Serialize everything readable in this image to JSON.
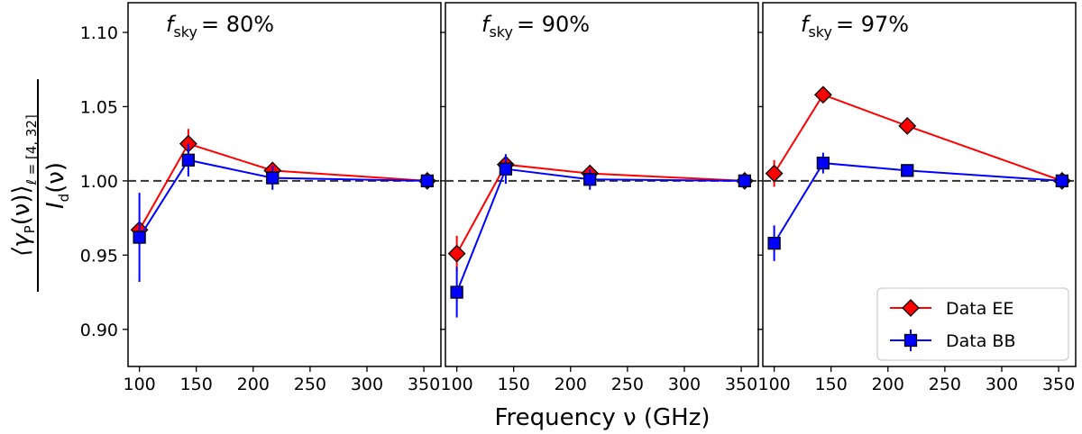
{
  "figure": {
    "xlabel": "Frequency ν (GHz)",
    "ylabel_main": "⟨γ",
    "ylabel_sub_P": "P",
    "ylabel_nu": "(ν)⟩",
    "ylabel_ell": "ℓ = [4, 32]",
    "ylabel_den": "I",
    "ylabel_den_sub": "d",
    "ylabel_den_nu": "(ν)"
  },
  "chart_data": [
    {
      "type": "line",
      "title_symbol": "f",
      "title_sub": "sky",
      "title_value": "= 80%",
      "x": [
        100,
        143,
        217,
        353
      ],
      "xlim": [
        90,
        365
      ],
      "ylim": [
        0.875,
        1.12
      ],
      "xticks": [
        "100",
        "150",
        "200",
        "250",
        "300",
        "350"
      ],
      "yticks": [
        "0.90",
        "0.95",
        "1.00",
        "1.05",
        "1.10"
      ],
      "reference_line": 1.0,
      "series": [
        {
          "name": "Data EE",
          "color": "#ff0000",
          "marker": "diamond",
          "values": [
            0.967,
            1.025,
            1.007,
            1.0
          ],
          "errors": [
            0.0,
            0.01,
            0.0,
            0.0
          ]
        },
        {
          "name": "Data BB",
          "color": "#0000ff",
          "marker": "square",
          "values": [
            0.962,
            1.014,
            1.002,
            1.0
          ],
          "errors": [
            0.03,
            0.011,
            0.008,
            0.0
          ]
        }
      ]
    },
    {
      "type": "line",
      "title_symbol": "f",
      "title_sub": "sky",
      "title_value": "= 90%",
      "x": [
        100,
        143,
        217,
        353
      ],
      "xlim": [
        90,
        365
      ],
      "ylim": [
        0.875,
        1.12
      ],
      "xticks": [
        "100",
        "150",
        "200",
        "250",
        "300",
        "350"
      ],
      "yticks": [],
      "reference_line": 1.0,
      "series": [
        {
          "name": "Data EE",
          "color": "#ff0000",
          "marker": "diamond",
          "values": [
            0.951,
            1.011,
            1.005,
            1.0
          ],
          "errors": [
            0.012,
            0.0,
            0.0,
            0.0
          ]
        },
        {
          "name": "Data BB",
          "color": "#0000ff",
          "marker": "square",
          "values": [
            0.925,
            1.008,
            1.001,
            1.0
          ],
          "errors": [
            0.017,
            0.01,
            0.007,
            0.0
          ]
        }
      ]
    },
    {
      "type": "line",
      "title_symbol": "f",
      "title_sub": "sky",
      "title_value": "= 97%",
      "x": [
        100,
        143,
        217,
        353
      ],
      "xlim": [
        90,
        365
      ],
      "ylim": [
        0.875,
        1.12
      ],
      "xticks": [
        "100",
        "150",
        "200",
        "250",
        "300",
        "350"
      ],
      "yticks": [],
      "reference_line": 1.0,
      "series": [
        {
          "name": "Data EE",
          "color": "#ff0000",
          "marker": "diamond",
          "values": [
            1.005,
            1.058,
            1.037,
            1.0
          ],
          "errors": [
            0.009,
            0.0,
            0.0,
            0.0
          ]
        },
        {
          "name": "Data BB",
          "color": "#0000ff",
          "marker": "square",
          "values": [
            0.958,
            1.012,
            1.007,
            1.0
          ],
          "errors": [
            0.012,
            0.007,
            0.0,
            0.0
          ]
        }
      ],
      "legend": {
        "position": "lower-right",
        "entries": [
          "Data EE",
          "Data BB"
        ]
      }
    }
  ]
}
